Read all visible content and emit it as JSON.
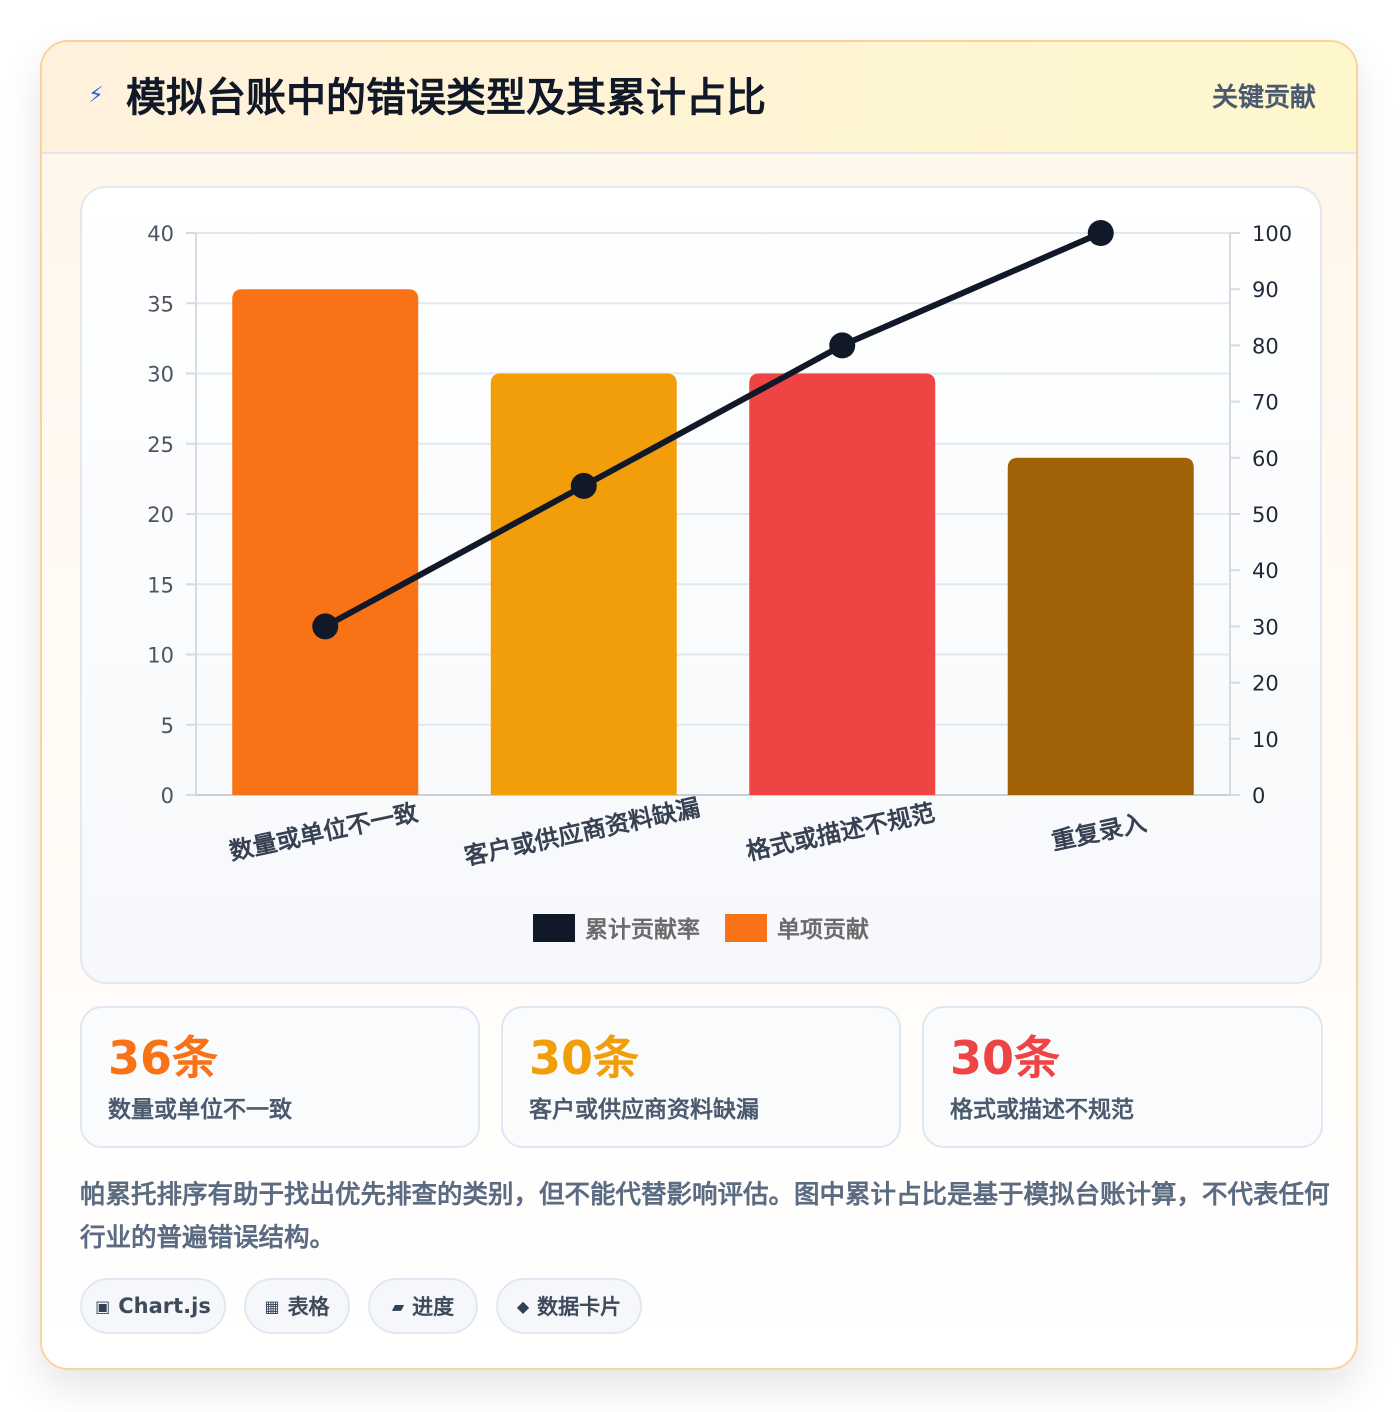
{
  "header": {
    "icon": "lightning-icon",
    "title": "模拟台账中的错误类型及其累计占比",
    "tag": "关键贡献"
  },
  "chart_data": {
    "type": "bar",
    "categories": [
      "数量或单位不一致",
      "客户或供应商资料缺漏",
      "格式或描述不规范",
      "重复录入"
    ],
    "series": [
      {
        "name": "单项贡献",
        "kind": "bar",
        "axis": "left",
        "values": [
          36,
          30,
          30,
          24
        ],
        "colors": [
          "#f97316",
          "#f29e0b",
          "#ef4444",
          "#a16207"
        ]
      },
      {
        "name": "累计贡献率",
        "kind": "line",
        "axis": "right",
        "values": [
          30,
          55,
          80,
          100
        ],
        "color": "#111827"
      }
    ],
    "ylim": [
      0,
      40
    ],
    "yticks": [
      0,
      5,
      10,
      15,
      20,
      25,
      30,
      35,
      40
    ],
    "y2lim": [
      0,
      100
    ],
    "y2ticks": [
      0,
      10,
      20,
      30,
      40,
      50,
      60,
      70,
      80,
      90,
      100
    ],
    "legend": [
      {
        "name": "累计贡献率",
        "color": "#111827"
      },
      {
        "name": "单项贡献",
        "color": "#f97316"
      }
    ],
    "legend_position": "bottom",
    "grid": true
  },
  "stats": [
    {
      "value": "36条",
      "label": "数量或单位不一致",
      "color": "#f97316"
    },
    {
      "value": "30条",
      "label": "客户或供应商资料缺漏",
      "color": "#f29e0b"
    },
    {
      "value": "30条",
      "label": "格式或描述不规范",
      "color": "#ef4444"
    }
  ],
  "note": "帕累托排序有助于找出优先排查的类别，但不能代替影响评估。图中累计占比是基于模拟台账计算，不代表任何行业的普遍错误结构。",
  "pills": [
    {
      "icon": "chart-icon",
      "glyph": "▣",
      "label": "Chart.js"
    },
    {
      "icon": "table-icon",
      "glyph": "▦",
      "label": "表格"
    },
    {
      "icon": "progress-icon",
      "glyph": "▰",
      "label": "进度"
    },
    {
      "icon": "diamond-icon",
      "glyph": "◆",
      "label": "数据卡片"
    }
  ]
}
